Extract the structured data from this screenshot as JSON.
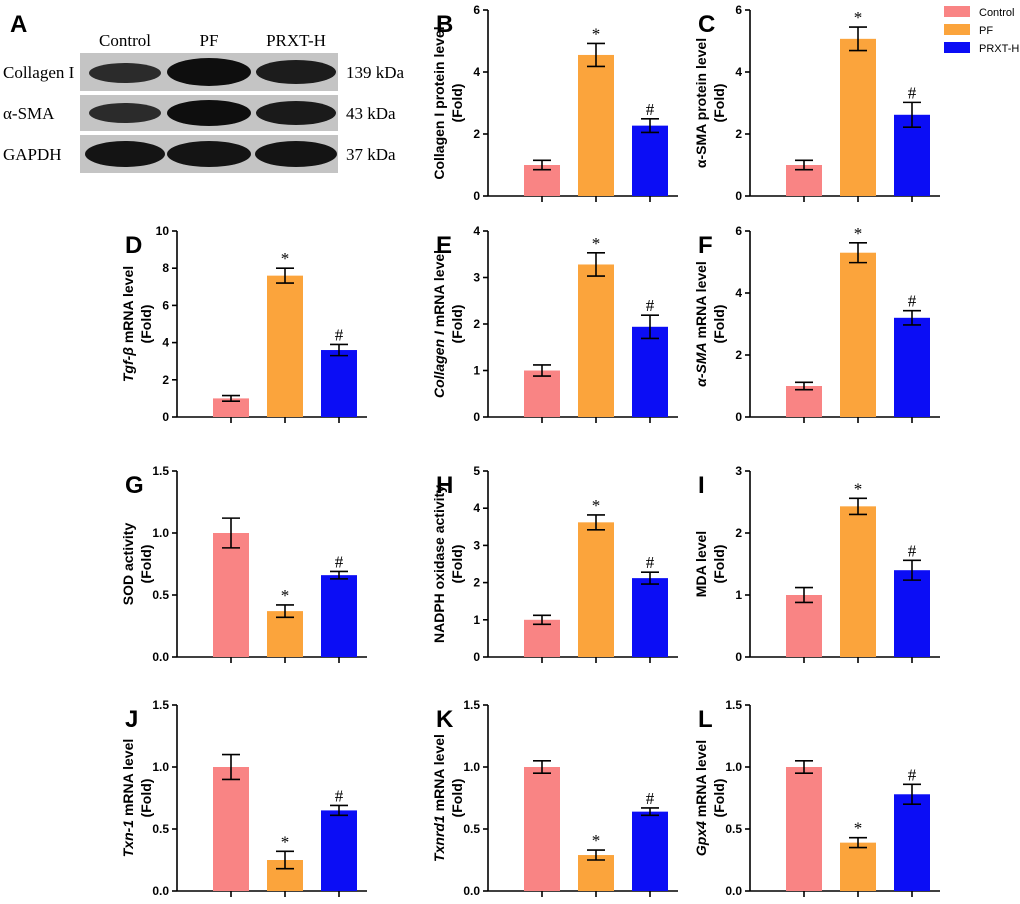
{
  "colors": {
    "Control": "#f98484",
    "PF": "#fba43c",
    "PRXT-H": "#0b0df5"
  },
  "legend": [
    "Control",
    "PF",
    "PRXT-H"
  ],
  "blot": {
    "letter": "A",
    "lanes": [
      "Control",
      "PF",
      "PRXT-H"
    ],
    "rows": [
      {
        "label": "Collagen I",
        "kda": "139 kDa"
      },
      {
        "label": "α-SMA",
        "kda": "43 kDa"
      },
      {
        "label": "GAPDH",
        "kda": "37 kDa"
      }
    ]
  },
  "chart_data": [
    {
      "id": "B",
      "type": "bar",
      "categories": [
        "Control",
        "PF",
        "PRXT-H"
      ],
      "values": [
        1.0,
        4.55,
        2.27
      ],
      "errors": [
        0.15,
        0.37,
        0.22
      ],
      "sig": [
        "",
        "*",
        "#"
      ],
      "ylabel": "Collagen I protein level",
      "ylabel2": "(Fold)",
      "ylim": [
        0,
        6
      ],
      "yticks": [
        0,
        2,
        4,
        6
      ],
      "tick_labels": [
        "0",
        "2",
        "4",
        "6"
      ]
    },
    {
      "id": "C",
      "type": "bar",
      "categories": [
        "Control",
        "PF",
        "PRXT-H"
      ],
      "values": [
        1.0,
        5.07,
        2.62
      ],
      "errors": [
        0.15,
        0.38,
        0.4
      ],
      "sig": [
        "",
        "*",
        "#"
      ],
      "ylabel": "α-SMA protein level",
      "ylabel2": "(Fold)",
      "ylim": [
        0,
        6
      ],
      "yticks": [
        0,
        2,
        4,
        6
      ],
      "tick_labels": [
        "0",
        "2",
        "4",
        "6"
      ]
    },
    {
      "id": "D",
      "type": "bar",
      "categories": [
        "Control",
        "PF",
        "PRXT-H"
      ],
      "values": [
        1.0,
        7.6,
        3.6
      ],
      "errors": [
        0.15,
        0.4,
        0.3
      ],
      "sig": [
        "",
        "*",
        "#"
      ],
      "ylabel_italic": "Tgf-β",
      "ylabel": " mRNA level",
      "ylabel2": "(Fold)",
      "ylim": [
        0,
        10
      ],
      "yticks": [
        0,
        2,
        4,
        6,
        8,
        10
      ],
      "tick_labels": [
        "0",
        "2",
        "4",
        "6",
        "8",
        "10"
      ]
    },
    {
      "id": "E",
      "type": "bar",
      "categories": [
        "Control",
        "PF",
        "PRXT-H"
      ],
      "values": [
        1.0,
        3.28,
        1.94
      ],
      "errors": [
        0.12,
        0.25,
        0.25
      ],
      "sig": [
        "",
        "*",
        "#"
      ],
      "ylabel_italic": "Collagen I",
      "ylabel": " mRNA level",
      "ylabel2": "(Fold)",
      "ylim": [
        0,
        4
      ],
      "yticks": [
        0,
        1,
        2,
        3,
        4
      ],
      "tick_labels": [
        "0",
        "1",
        "2",
        "3",
        "4"
      ]
    },
    {
      "id": "F",
      "type": "bar",
      "categories": [
        "Control",
        "PF",
        "PRXT-H"
      ],
      "values": [
        1.0,
        5.3,
        3.2
      ],
      "errors": [
        0.12,
        0.32,
        0.23
      ],
      "sig": [
        "",
        "*",
        "#"
      ],
      "ylabel_italic": "α-SMA",
      "ylabel": " mRNA level",
      "ylabel2": "(Fold)",
      "ylim": [
        0,
        6
      ],
      "yticks": [
        0,
        2,
        4,
        6
      ],
      "tick_labels": [
        "0",
        "2",
        "4",
        "6"
      ]
    },
    {
      "id": "G",
      "type": "bar",
      "categories": [
        "Control",
        "PF",
        "PRXT-H"
      ],
      "values": [
        1.0,
        0.37,
        0.66
      ],
      "errors": [
        0.12,
        0.05,
        0.03
      ],
      "sig": [
        "",
        "*",
        "#"
      ],
      "ylabel": "SOD activity",
      "ylabel2": "(Fold)",
      "ylim": [
        0,
        1.5
      ],
      "yticks": [
        0,
        0.5,
        1.0,
        1.5
      ],
      "tick_labels": [
        "0.0",
        "0.5",
        "1.0",
        "1.5"
      ]
    },
    {
      "id": "H",
      "type": "bar",
      "categories": [
        "Control",
        "PF",
        "PRXT-H"
      ],
      "values": [
        1.0,
        3.62,
        2.12
      ],
      "errors": [
        0.12,
        0.2,
        0.16
      ],
      "sig": [
        "",
        "*",
        "#"
      ],
      "ylabel": "NADPH oxidase activity",
      "ylabel2": "(Fold)",
      "ylim": [
        0,
        5
      ],
      "yticks": [
        0,
        1,
        2,
        3,
        4,
        5
      ],
      "tick_labels": [
        "0",
        "1",
        "2",
        "3",
        "4",
        "5"
      ]
    },
    {
      "id": "I",
      "type": "bar",
      "categories": [
        "Control",
        "PF",
        "PRXT-H"
      ],
      "values": [
        1.0,
        2.43,
        1.4
      ],
      "errors": [
        0.12,
        0.13,
        0.16
      ],
      "sig": [
        "",
        "*",
        "#"
      ],
      "ylabel": "MDA level",
      "ylabel2": "(Fold)",
      "ylim": [
        0,
        3
      ],
      "yticks": [
        0,
        1,
        2,
        3
      ],
      "tick_labels": [
        "0",
        "1",
        "2",
        "3"
      ]
    },
    {
      "id": "J",
      "type": "bar",
      "categories": [
        "Control",
        "PF",
        "PRXT-H"
      ],
      "values": [
        1.0,
        0.25,
        0.65
      ],
      "errors": [
        0.1,
        0.07,
        0.04
      ],
      "sig": [
        "",
        "*",
        "#"
      ],
      "ylabel_italic": "Txn-1",
      "ylabel": " mRNA level",
      "ylabel2": "(Fold)",
      "ylim": [
        0,
        1.5
      ],
      "yticks": [
        0,
        0.5,
        1.0,
        1.5
      ],
      "tick_labels": [
        "0.0",
        "0.5",
        "1.0",
        "1.5"
      ]
    },
    {
      "id": "K",
      "type": "bar",
      "categories": [
        "Control",
        "PF",
        "PRXT-H"
      ],
      "values": [
        1.0,
        0.29,
        0.64
      ],
      "errors": [
        0.05,
        0.04,
        0.03
      ],
      "sig": [
        "",
        "*",
        "#"
      ],
      "ylabel_italic": "Txnrd1",
      "ylabel": " mRNA level",
      "ylabel2": "(Fold)",
      "ylim": [
        0,
        1.5
      ],
      "yticks": [
        0,
        0.5,
        1.0,
        1.5
      ],
      "tick_labels": [
        "0.0",
        "0.5",
        "1.0",
        "1.5"
      ]
    },
    {
      "id": "L",
      "type": "bar",
      "categories": [
        "Control",
        "PF",
        "PRXT-H"
      ],
      "values": [
        1.0,
        0.39,
        0.78
      ],
      "errors": [
        0.05,
        0.04,
        0.08
      ],
      "sig": [
        "",
        "*",
        "#"
      ],
      "ylabel_italic": "Gpx4",
      "ylabel": " mRNA level",
      "ylabel2": "(Fold)",
      "ylim": [
        0,
        1.5
      ],
      "yticks": [
        0,
        0.5,
        1.0,
        1.5
      ],
      "tick_labels": [
        "0.0",
        "0.5",
        "1.0",
        "1.5"
      ]
    }
  ]
}
